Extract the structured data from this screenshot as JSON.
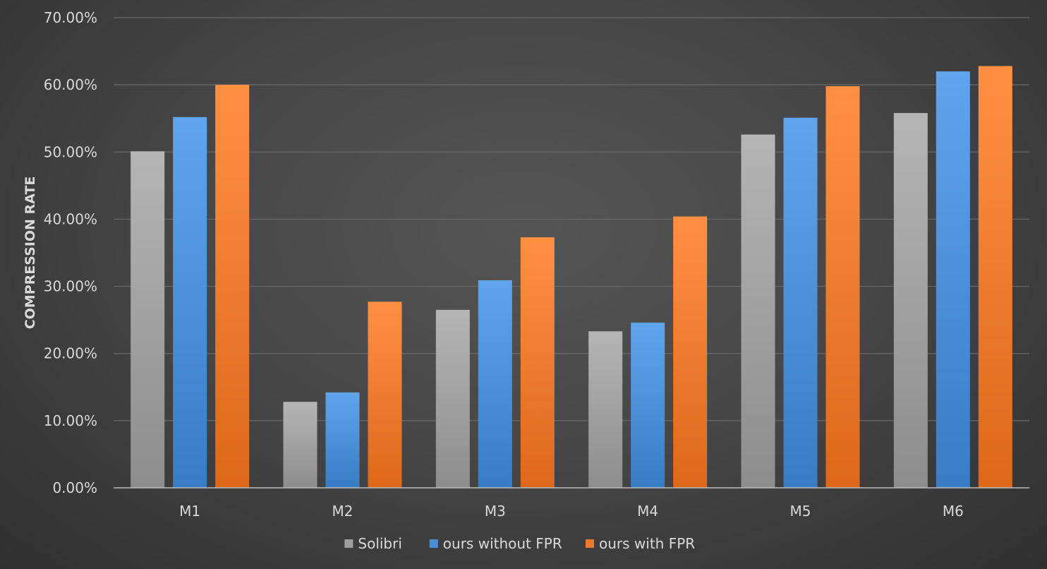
{
  "chart_data": {
    "type": "bar",
    "categories": [
      "M1",
      "M2",
      "M3",
      "M4",
      "M5",
      "M6"
    ],
    "series": [
      {
        "name": "Solibri",
        "color": "#9f9f9f",
        "values": [
          0.501,
          0.128,
          0.265,
          0.233,
          0.526,
          0.558
        ]
      },
      {
        "name": "ours without FPR",
        "color": "#4a8fd6",
        "values": [
          0.552,
          0.142,
          0.309,
          0.246,
          0.551,
          0.62
        ]
      },
      {
        "name": "ours with FPR",
        "color": "#ef7a2c",
        "values": [
          0.6,
          0.277,
          0.373,
          0.404,
          0.598,
          0.628
        ]
      }
    ],
    "ylim": [
      0,
      0.7
    ],
    "yticks": [
      0,
      0.1,
      0.2,
      0.3,
      0.4,
      0.5,
      0.6,
      0.7
    ],
    "ytick_labels": [
      "0.00%",
      "10.00%",
      "20.00%",
      "30.00%",
      "40.00%",
      "50.00%",
      "60.00%",
      "70.00%"
    ],
    "xlabel": "",
    "ylabel": "COMPRESSION RATE",
    "title": "",
    "grid": true,
    "legend_position": "bottom"
  }
}
